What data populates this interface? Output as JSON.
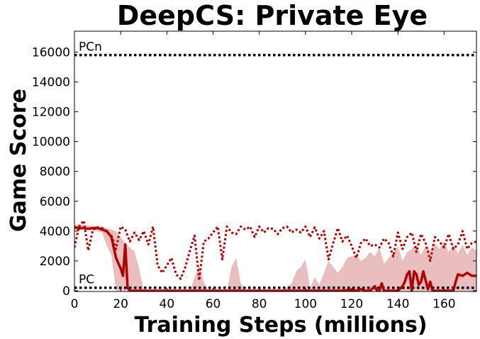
{
  "chart_data": {
    "type": "line",
    "title": "DeepCS: Private Eye",
    "xlabel": "Training Steps (millions)",
    "ylabel": "Game Score",
    "xlim": [
      0,
      174
    ],
    "ylim": [
      -50,
      17400
    ],
    "xticks": [
      0,
      20,
      40,
      60,
      80,
      100,
      120,
      140,
      160
    ],
    "yticks": [
      0,
      2000,
      4000,
      6000,
      8000,
      10000,
      12000,
      14000,
      16000
    ],
    "grid": false,
    "colors": {
      "series": "#b00000",
      "band": "#e6b3b3",
      "reference": "#000000"
    },
    "reference_lines": [
      {
        "label": "PCn",
        "value": 15800
      },
      {
        "label": "PC",
        "value": 200
      }
    ],
    "series": [
      {
        "style": "dotted",
        "x": [
          0,
          2,
          4,
          6,
          8,
          10,
          12,
          14,
          16,
          18,
          20,
          22,
          24,
          26,
          28,
          30,
          32,
          34,
          36,
          38,
          40,
          42,
          44,
          46,
          48,
          50,
          52,
          54,
          56,
          58,
          60,
          62,
          64,
          66,
          68,
          70,
          72,
          74,
          76,
          78,
          80,
          82,
          84,
          86,
          88,
          90,
          92,
          94,
          96,
          98,
          100,
          102,
          104,
          106,
          108,
          110,
          112,
          114,
          116,
          118,
          120,
          122,
          124,
          126,
          128,
          130,
          132,
          134,
          136,
          138,
          140,
          142,
          144,
          146,
          148,
          150,
          152,
          154,
          156,
          158,
          160,
          162,
          164,
          166,
          168,
          170,
          172,
          174
        ],
        "y": [
          2900,
          4300,
          4700,
          2700,
          4100,
          4250,
          4200,
          3900,
          3700,
          2800,
          4300,
          4100,
          3300,
          3900,
          3400,
          4000,
          3100,
          4300,
          1700,
          1200,
          1700,
          2200,
          1100,
          800,
          1600,
          2700,
          3700,
          700,
          3300,
          3500,
          3900,
          4300,
          2100,
          4300,
          3900,
          3800,
          4300,
          4100,
          4300,
          3600,
          4300,
          3900,
          4200,
          4150,
          3800,
          4200,
          4300,
          3900,
          4100,
          3900,
          4300,
          3600,
          4250,
          3500,
          4000,
          2100,
          3200,
          4200,
          3300,
          3700,
          3000,
          2200,
          3200,
          3500,
          3000,
          3100,
          2900,
          3500,
          3200,
          2300,
          3900,
          2800,
          3600,
          3900,
          2600,
          3800,
          3200,
          2000,
          3600,
          3300,
          2900,
          3800,
          2800,
          3100,
          4000,
          2800,
          3200,
          3300
        ]
      },
      {
        "style": "solid",
        "x": [
          0,
          2,
          4,
          6,
          8,
          10,
          12,
          14,
          16,
          18,
          20,
          21,
          22,
          23,
          24,
          26,
          28,
          30,
          40,
          50,
          60,
          70,
          80,
          90,
          100,
          110,
          115,
          120,
          122,
          124,
          126,
          128,
          130,
          131,
          132,
          133,
          134,
          136,
          138,
          140,
          142,
          143,
          144,
          145,
          146,
          147,
          148,
          149,
          150,
          151,
          152,
          153,
          154,
          155,
          156,
          158,
          160,
          162,
          164,
          165,
          166,
          168,
          170,
          172,
          174
        ],
        "y": [
          4250,
          4200,
          4200,
          4150,
          4200,
          4200,
          4100,
          4000,
          3600,
          2200,
          1500,
          1000,
          3100,
          200,
          0,
          0,
          0,
          0,
          0,
          0,
          0,
          0,
          0,
          0,
          0,
          0,
          0,
          50,
          0,
          100,
          0,
          0,
          300,
          0,
          0,
          500,
          0,
          0,
          0,
          0,
          300,
          600,
          1100,
          1300,
          0,
          1300,
          1100,
          400,
          600,
          1300,
          700,
          100,
          600,
          0,
          0,
          0,
          0,
          0,
          0,
          600,
          1100,
          1000,
          1200,
          1000,
          1000
        ]
      }
    ],
    "band": {
      "x": [
        0,
        4,
        8,
        12,
        14,
        16,
        18,
        20,
        22,
        24,
        26,
        28,
        30,
        40,
        50,
        52,
        54,
        56,
        58,
        60,
        66,
        68,
        70,
        72,
        74,
        80,
        90,
        94,
        96,
        98,
        100,
        102,
        104,
        106,
        108,
        110,
        112,
        114,
        116,
        118,
        120,
        122,
        124,
        126,
        128,
        130,
        132,
        134,
        136,
        138,
        140,
        142,
        144,
        146,
        148,
        150,
        152,
        154,
        156,
        158,
        160,
        162,
        164,
        166,
        168,
        170,
        172,
        174
      ],
      "low": [
        4050,
        4100,
        4050,
        3900,
        3000,
        2400,
        0,
        0,
        0,
        0,
        0,
        0,
        0,
        0,
        0,
        0,
        0,
        0,
        0,
        0,
        0,
        0,
        0,
        0,
        0,
        0,
        0,
        0,
        0,
        0,
        0,
        0,
        0,
        0,
        0,
        0,
        0,
        0,
        0,
        0,
        0,
        0,
        0,
        0,
        0,
        0,
        0,
        0,
        0,
        0,
        0,
        0,
        0,
        0,
        0,
        0,
        0,
        0,
        0,
        0,
        0,
        0,
        0,
        0,
        0,
        0,
        0,
        0
      ],
      "high": [
        4400,
        4400,
        4350,
        4300,
        4200,
        4100,
        4000,
        3600,
        3200,
        2900,
        2600,
        1500,
        0,
        0,
        0,
        900,
        1700,
        600,
        0,
        0,
        0,
        1600,
        2200,
        500,
        0,
        0,
        0,
        500,
        1300,
        1600,
        2100,
        200,
        900,
        400,
        1200,
        2000,
        1600,
        1200,
        1600,
        2200,
        2300,
        2400,
        2000,
        2200,
        2600,
        2300,
        2900,
        1800,
        2200,
        2500,
        3000,
        2000,
        2600,
        2800,
        3100,
        2400,
        3000,
        2700,
        3200,
        2800,
        3300,
        2600,
        3100,
        2500,
        3100,
        2400,
        2900,
        2700
      ]
    }
  }
}
